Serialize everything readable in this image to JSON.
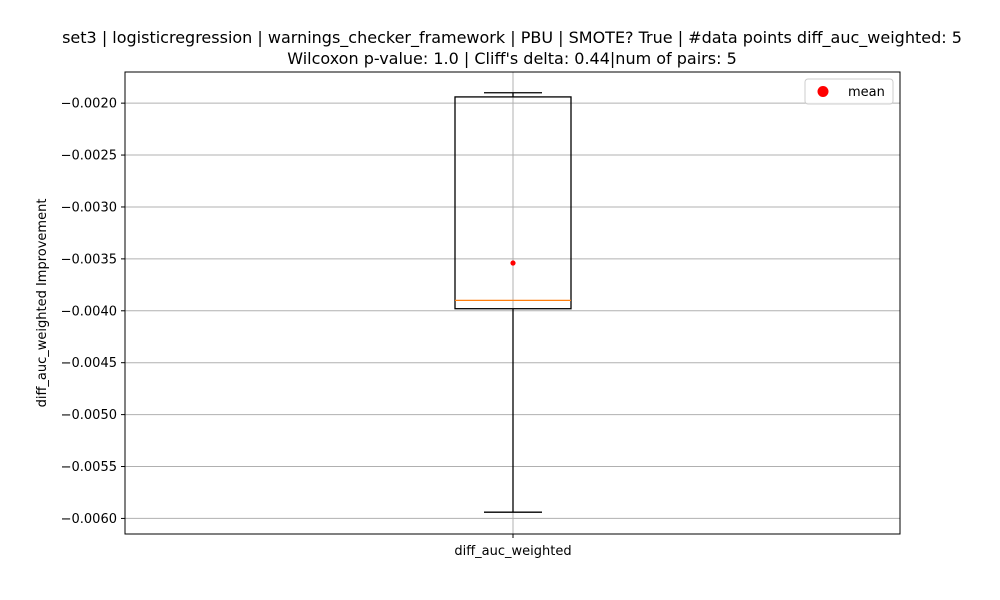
{
  "chart_data": {
    "type": "box",
    "title": "set3 | logisticregression | warnings_checker_framework | PBU | SMOTE? True | #data points diff_auc_weighted: 5\nWilcoxon p-value: 1.0 | Cliff's delta: 0.44|num of pairs: 5",
    "xlabel": "",
    "ylabel": "diff_auc_weighted Improvement",
    "categories": [
      "diff_auc_weighted"
    ],
    "box": {
      "whisker_high": -0.0019,
      "q3": -0.00194,
      "median": -0.0039,
      "q1": -0.00398,
      "whisker_low": -0.00594,
      "mean": -0.00354
    },
    "ylim": [
      -0.00615,
      -0.0017
    ],
    "yticks": [
      {
        "value": -0.002,
        "label": "−0.0020"
      },
      {
        "value": -0.0025,
        "label": "−0.0025"
      },
      {
        "value": -0.003,
        "label": "−0.0030"
      },
      {
        "value": -0.0035,
        "label": "−0.0035"
      },
      {
        "value": -0.004,
        "label": "−0.0040"
      },
      {
        "value": -0.0045,
        "label": "−0.0045"
      },
      {
        "value": -0.005,
        "label": "−0.0050"
      },
      {
        "value": -0.0055,
        "label": "−0.0055"
      },
      {
        "value": -0.006,
        "label": "−0.0060"
      }
    ],
    "legend": {
      "placement": "top-right",
      "entries": [
        {
          "label": "mean",
          "color": "#ff0000",
          "marker": "circle"
        }
      ]
    },
    "grid": true,
    "colors": {
      "box": "#000000",
      "median": "#ff7f0e",
      "mean": "#ff0000",
      "grid": "#b0b0b0"
    }
  }
}
